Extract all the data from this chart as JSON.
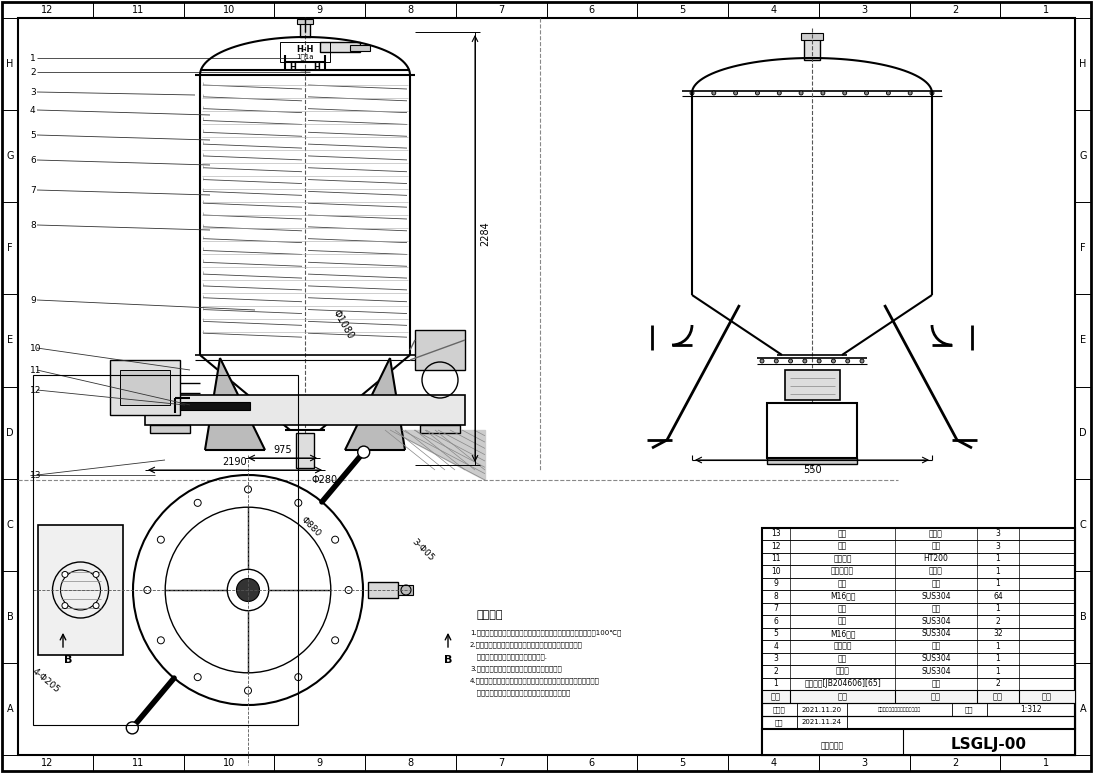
{
  "bg_color": "#ffffff",
  "drawing_number": "LSGLJ-00",
  "scale": "1:312",
  "date1": "2021.11.20",
  "date2": "2021.11.24",
  "grid_cols": [
    "12",
    "11",
    "10",
    "9",
    "8",
    "7",
    "6",
    "5",
    "4",
    "3",
    "2",
    "1"
  ],
  "grid_rows": [
    "H",
    "G",
    "F",
    "E",
    "D",
    "C",
    "B",
    "A"
  ],
  "bom_rows": [
    [
      "13",
      "支腿",
      "焊接件",
      "3",
      ""
    ],
    [
      "12",
      "皮带",
      "橡胶",
      "3",
      ""
    ],
    [
      "11",
      "小皮带轮",
      "HT200",
      "1",
      ""
    ],
    [
      "10",
      "驱动电机座",
      "焊接件",
      "1",
      ""
    ],
    [
      "9",
      "马达",
      "雇件",
      "1",
      ""
    ],
    [
      "8",
      "M16螺帽",
      "SUS304",
      "64",
      ""
    ],
    [
      "7",
      "底部",
      "雇件",
      "1",
      ""
    ],
    [
      "6",
      "法兰",
      "SUS304",
      "2",
      ""
    ],
    [
      "5",
      "M16丝杆",
      "SUS304",
      "32",
      ""
    ],
    [
      "4",
      "旋转机构",
      "雇件",
      "1",
      ""
    ],
    [
      "3",
      "筒体",
      "SUS304",
      "1",
      ""
    ],
    [
      "2",
      "顶部盖",
      "SUS304",
      "1",
      ""
    ],
    [
      "1",
      "标圆油封[JB204606][65]",
      "橡胶",
      "2",
      ""
    ]
  ],
  "bom_headers": [
    "序号",
    "名称",
    "材料",
    "数量",
    "备注"
  ],
  "tech_title": "技术要求",
  "tech_notes": [
    "1.装配液动输承水分蒸采用机械油脂进行搪盛，润滑温度不得超过100℃。",
    "2.装配前要首先清理组零件不准许有毛刺、飞边、氧化皮、",
    "   锈斑和脏物等，各配合面不准许碰伤.",
    "3.经过检验合格的零件不允许再次放置地面上。",
    "4.旋钮、尾座和螺圈要固定，严禁打击及使用不合适的扳具和钳手。",
    "   紧固后旋钮后，螺帽和短钉，螺丝大端不得损坏。"
  ],
  "label_nums": [
    "1",
    "2",
    "3",
    "4",
    "5",
    "6",
    "7",
    "8",
    "9",
    "10",
    "11",
    "12",
    "13"
  ],
  "dim_2284": "2284",
  "dim_1080": "Φ1080",
  "dim_280": "Φ280",
  "dim_2190": "2190",
  "dim_975": "975",
  "dim_550": "550",
  "dim_880": "Φ880",
  "dim_205a": "4-Φ205",
  "dim_205b": "3-Φ05",
  "hh_label": "H-H",
  "hh_scale": "1：1a",
  "bb_label": "B"
}
